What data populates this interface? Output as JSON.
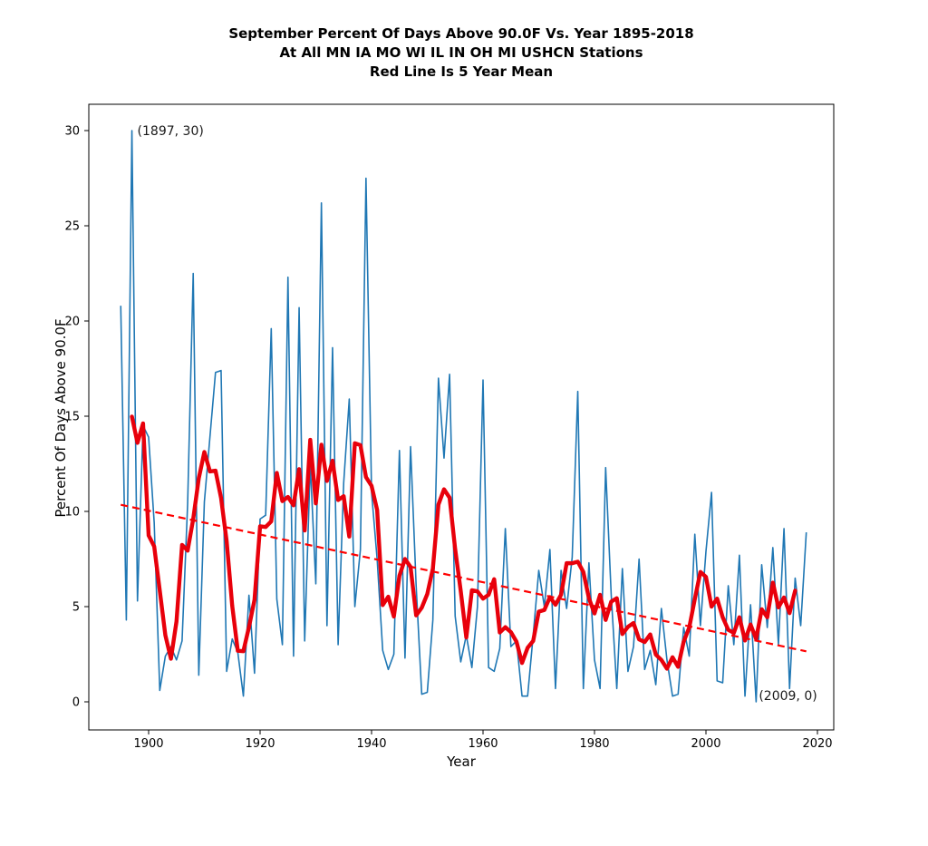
{
  "title": {
    "line1": "September Percent Of Days Above 90.0F Vs. Year 1895-2018",
    "line2": "At All MN IA MO WI IL IN OH MI USHCN Stations",
    "line3": "Red Line Is 5 Year Mean"
  },
  "axes": {
    "x_label": "Year",
    "y_label": "Percent Of Days Above 90.0F",
    "x_ticks": [
      1900,
      1920,
      1940,
      1960,
      1980,
      2000,
      2020
    ],
    "y_ticks": [
      0,
      5,
      10,
      15,
      20,
      25,
      30
    ],
    "x_range": [
      1889.0,
      2023.0
    ],
    "y_range": [
      -1.5,
      31.4
    ]
  },
  "annotations": [
    {
      "text": "(1897, 30)",
      "year": 1897,
      "value": 30
    },
    {
      "text": "(2009, 0)",
      "year": 2009,
      "value": 0
    }
  ],
  "colors": {
    "annual_line": "#1f77b4",
    "mean_line": "#e8000b",
    "trend_line": "#ff0000",
    "spine": "#000000",
    "text": "#000000"
  },
  "chart_data": {
    "type": "line",
    "title": "September Percent Of Days Above 90.0F Vs. Year 1895-2018",
    "xlabel": "Year",
    "ylabel": "Percent Of Days Above 90.0F",
    "grid": false,
    "legend": "none",
    "start_year": 1895,
    "end_year": 2018,
    "series": [
      {
        "name": "annual-percent-days-above-90F",
        "style": "thin solid blue",
        "values": [
          20.8,
          4.3,
          30.0,
          5.3,
          14.5,
          13.9,
          9.4,
          0.6,
          2.4,
          2.9,
          2.2,
          3.2,
          10.4,
          22.5,
          1.4,
          10.5,
          13.9,
          17.3,
          17.4,
          1.6,
          3.3,
          2.6,
          0.3,
          5.6,
          1.5,
          9.6,
          9.8,
          19.6,
          5.4,
          3.0,
          22.3,
          2.4,
          20.7,
          3.2,
          12.5,
          6.2,
          26.2,
          4.0,
          18.6,
          3.0,
          11.5,
          15.9,
          5.0,
          8.0,
          27.5,
          11.0,
          7.5,
          2.7,
          1.7,
          2.5,
          13.2,
          2.3,
          13.4,
          6.1,
          0.4,
          0.5,
          4.3,
          17.0,
          12.8,
          17.2,
          4.5,
          2.1,
          3.5,
          1.8,
          5.0,
          16.9,
          1.8,
          1.6,
          2.8,
          9.1,
          2.9,
          3.2,
          0.3,
          0.3,
          3.5,
          6.9,
          5.0,
          8.0,
          0.7,
          6.9,
          4.9,
          7.6,
          16.3,
          0.7,
          7.3,
          2.2,
          0.7,
          12.3,
          5.6,
          0.7,
          7.0,
          1.6,
          2.9,
          7.5,
          1.7,
          2.7,
          0.9,
          4.9,
          2.2,
          0.3,
          0.4,
          3.9,
          2.4,
          8.8,
          4.0,
          7.9,
          11.0,
          1.1,
          1.0,
          6.1,
          3.0,
          7.7,
          0.3,
          5.1,
          0.0,
          7.2,
          3.9,
          8.1,
          3.0,
          9.1,
          0.7,
          6.5,
          4.0,
          8.9
        ]
      },
      {
        "name": "5-year-mean",
        "style": "thick solid red",
        "derived": "centered 5-year running mean of annual series, plotted 1897-2016"
      },
      {
        "name": "linear-trend",
        "style": "dashed red",
        "points": [
          {
            "year": 1895,
            "value": 10.35
          },
          {
            "year": 2018,
            "value": 2.65
          }
        ]
      }
    ]
  }
}
